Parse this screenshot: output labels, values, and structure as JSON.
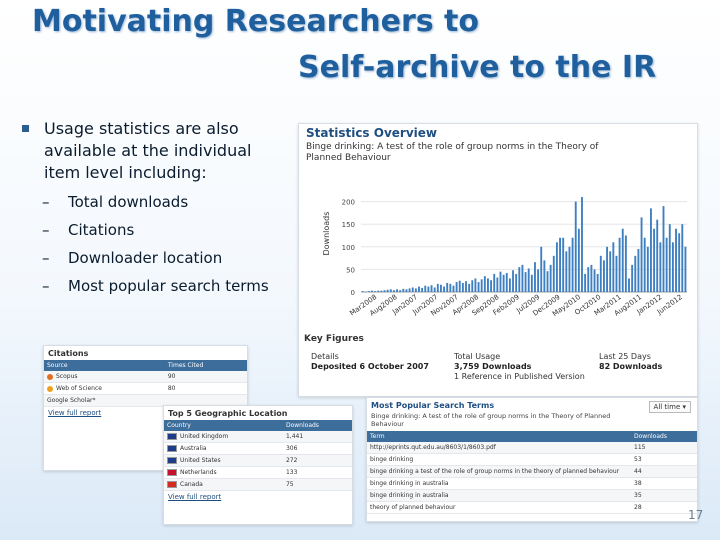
{
  "slide": {
    "title_line1": "Motivating Researchers to",
    "title_line2": "Self-archive to the IR",
    "bullet": "Usage statistics are also available at the individual item level including:",
    "subitems": [
      "Total downloads",
      "Citations",
      "Downloader location",
      "Most popular search terms"
    ],
    "page_number": "17"
  },
  "stats_panel": {
    "title": "Statistics Overview",
    "subtitle": "Binge drinking: A test of the role of group norms in the Theory of Planned Behaviour",
    "ylabel": "Downloads",
    "key_figures": "Key Figures",
    "details_label": "Details",
    "details_value": "Deposited 6 October 2007",
    "total_label": "Total Usage",
    "total_value": "3,759 Downloads",
    "total_refs": "1 Reference in Published Version",
    "last25_label": "Last 25 Days",
    "last25_value": "82 Downloads"
  },
  "chart_data": {
    "type": "bar",
    "ylabel": "Downloads",
    "ylim": [
      0,
      250
    ],
    "yticks": [
      0,
      50,
      100,
      150,
      200
    ],
    "xtick_labels": [
      "Mar2008",
      "Aug2008",
      "Jan2007",
      "Jun2007",
      "Nov2007",
      "Apr2008",
      "Sep2008",
      "Feb2009",
      "Jul2009",
      "Dec2009",
      "May2010",
      "Oct2010",
      "Mar2011",
      "Aug2011",
      "Jan2012",
      "Jun2012"
    ],
    "values": [
      2,
      1,
      2,
      3,
      2,
      3,
      3,
      4,
      5,
      6,
      4,
      6,
      4,
      7,
      6,
      8,
      10,
      8,
      12,
      9,
      14,
      12,
      15,
      10,
      18,
      16,
      12,
      20,
      18,
      14,
      22,
      25,
      20,
      24,
      18,
      26,
      30,
      22,
      28,
      35,
      30,
      26,
      40,
      32,
      45,
      38,
      42,
      30,
      48,
      40,
      55,
      60,
      44,
      52,
      38,
      66,
      50,
      100,
      70,
      46,
      60,
      80,
      110,
      120,
      120,
      90,
      100,
      120,
      200,
      140,
      210,
      40,
      55,
      60,
      50,
      40,
      80,
      70,
      100,
      90,
      110,
      80,
      120,
      140,
      125,
      30,
      60,
      80,
      95,
      165,
      120,
      100,
      185,
      140,
      160,
      110,
      190,
      120,
      150,
      110,
      140,
      130,
      150,
      100
    ]
  },
  "citations": {
    "title": "Citations",
    "headers": [
      "Source",
      "Times Cited"
    ],
    "rows": [
      [
        "Scopus",
        "90"
      ],
      [
        "Web of Science",
        "80"
      ],
      [
        "Google Scholar*",
        ""
      ]
    ],
    "link": "View full report"
  },
  "geo": {
    "title": "Top 5 Geographic Location",
    "headers": [
      "Country",
      "Downloads"
    ],
    "rows": [
      [
        "United Kingdom",
        "1,441"
      ],
      [
        "Australia",
        "306"
      ],
      [
        "United States",
        "272"
      ],
      [
        "Netherlands",
        "133"
      ],
      [
        "Canada",
        "75"
      ]
    ],
    "link": "View full report",
    "colors": [
      "#1f3c88",
      "#1f3c88",
      "#1f3c88",
      "#c8102e",
      "#d52b1e"
    ]
  },
  "search_terms": {
    "title": "Most Popular Search Terms",
    "subtitle": "Binge drinking: A test of the role of group norms in the Theory of Planned Behaviour",
    "date_filter": "All time",
    "headers": [
      "Term",
      "Downloads"
    ],
    "rows": [
      [
        "http://eprints.qut.edu.au/8603/1/8603.pdf",
        "115"
      ],
      [
        "binge drinking",
        "53"
      ],
      [
        "binge drinking a test of the role of group norms in the theory of planned behaviour",
        "44"
      ],
      [
        "binge drinking in australia",
        "38"
      ],
      [
        "binge drinking in australia",
        "35"
      ],
      [
        "theory of planned behaviour",
        "28"
      ]
    ]
  }
}
